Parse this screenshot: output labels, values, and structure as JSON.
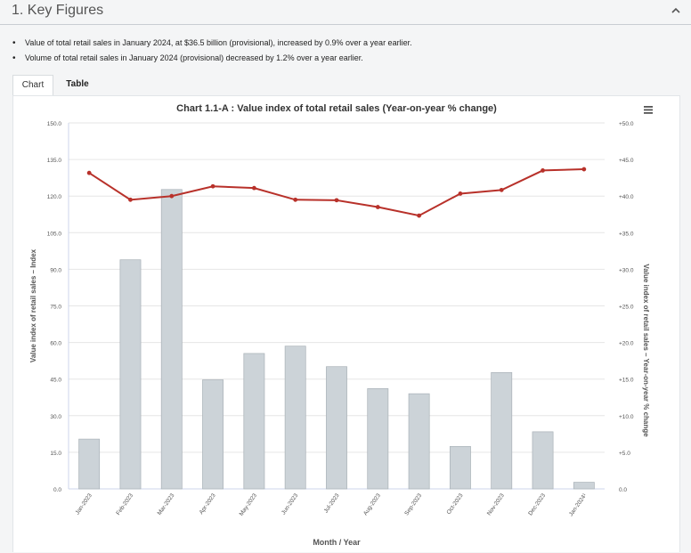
{
  "section": {
    "title": "1. Key Figures",
    "collapse_icon": "chevron-up-icon"
  },
  "bullets": [
    "Value of total retail sales in January 2024, at $36.5 billion (provisional), increased by 0.9% over a year earlier.",
    "Volume of total retail sales in January 2024 (provisional) decreased by 1.2% over a year earlier."
  ],
  "tabs": [
    {
      "label": "Chart",
      "active": true
    },
    {
      "label": "Table",
      "active": false
    }
  ],
  "menu_icon": "hamburger-menu-icon",
  "colors": {
    "bar": "#ccd3d8",
    "bar_stroke": "#a9b1b7",
    "line": "#b8312a",
    "grid": "#e6e6e6"
  },
  "chart_data": {
    "type": "bar",
    "title": "Chart 1.1-A : Value index of total retail sales (Year-on-year % change)",
    "xlabel": "Month / Year",
    "ylabel_left": "Value index of retail sales – Index",
    "ylabel_right": "Value index of retail sales – Year-on-year % change",
    "categories": [
      "Jan-2023",
      "Feb-2023",
      "Mar-2023",
      "Apr-2023",
      "May-2023",
      "Jun-2023",
      "Jul-2023",
      "Aug-2023",
      "Sep-2023",
      "Oct-2023",
      "Nov-2023",
      "Dec-2023",
      "Jan-2024¹"
    ],
    "left_ticks": [
      "0.0",
      "15.0",
      "30.0",
      "45.0",
      "60.0",
      "75.0",
      "90.0",
      "105.0",
      "120.0",
      "135.0",
      "150.0"
    ],
    "right_ticks": [
      "0.0",
      "+5.0",
      "+10.0",
      "+15.0",
      "+20.0",
      "+25.0",
      "+30.0",
      "+35.0",
      "+40.0",
      "+45.0",
      "+50.0"
    ],
    "ylim_left": [
      0,
      150
    ],
    "ylim_right": [
      0,
      50
    ],
    "grid": true,
    "series": [
      {
        "type": "bar",
        "axis": "right",
        "values": [
          6.8,
          31.3,
          40.9,
          14.9,
          18.5,
          19.5,
          16.7,
          13.7,
          13.0,
          5.8,
          15.9,
          7.8,
          0.9
        ]
      },
      {
        "type": "line",
        "axis": "left",
        "values": [
          129.5,
          118.5,
          120.0,
          124.0,
          123.3,
          118.5,
          118.3,
          115.5,
          112.0,
          121.0,
          122.5,
          130.5,
          131.0
        ]
      }
    ]
  }
}
